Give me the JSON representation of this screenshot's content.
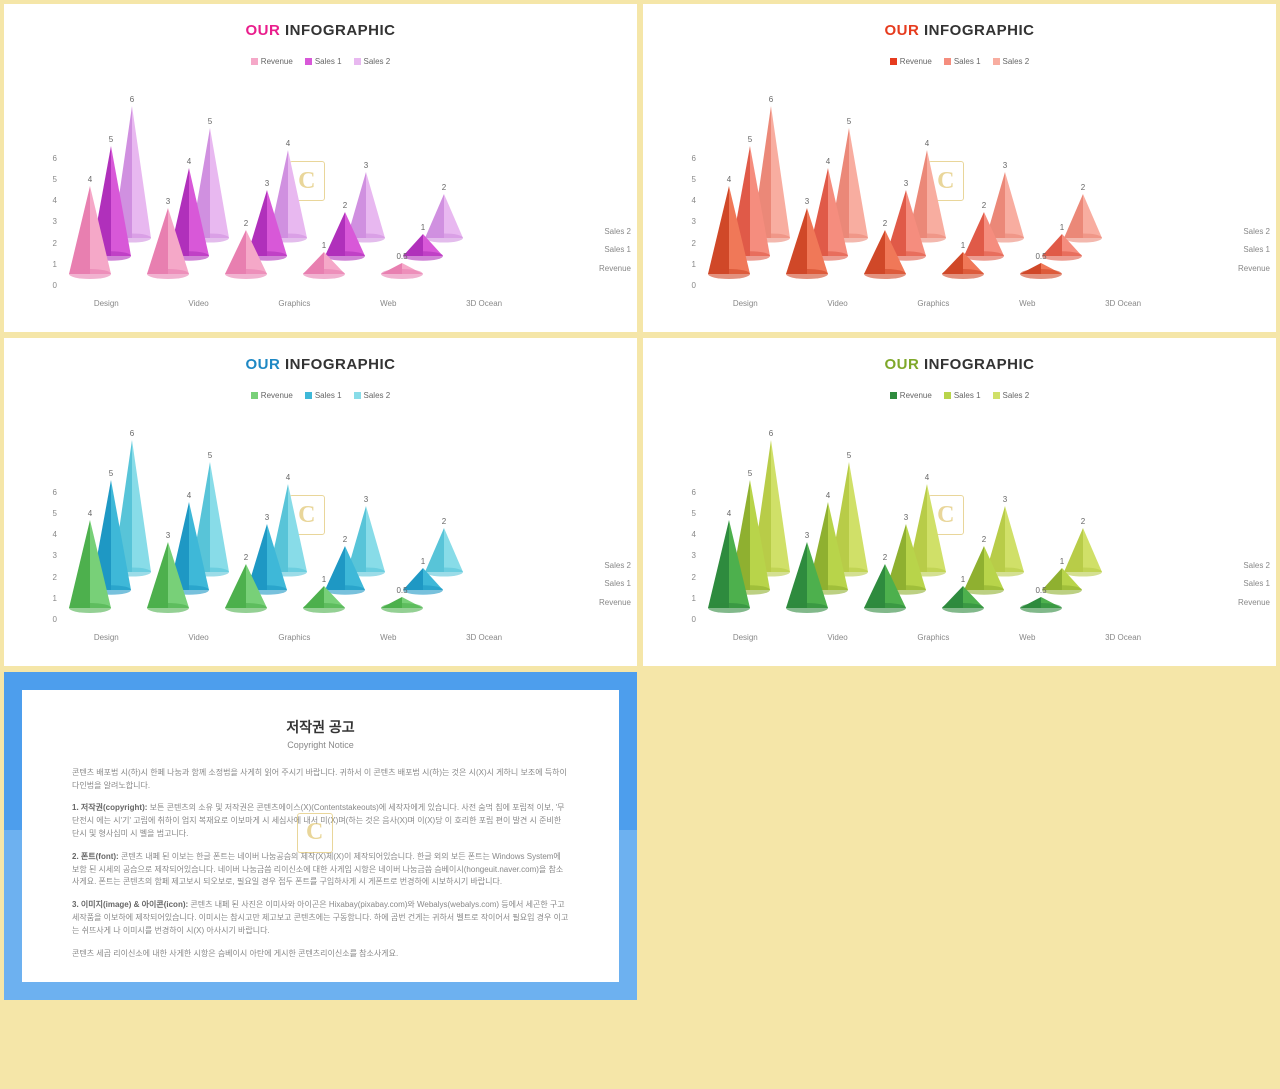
{
  "common": {
    "title_prefix": "OUR",
    "title_suffix": " INFOGRAPHIC",
    "categories": [
      "Design",
      "Video",
      "Graphics",
      "Web",
      "3D Ocean"
    ],
    "series_names": [
      "Revenue",
      "Sales 1",
      "Sales 2"
    ],
    "y_ticks": [
      "0",
      "1",
      "2",
      "3",
      "4",
      "5",
      "6"
    ],
    "ylim": [
      0,
      6
    ],
    "revenue": [
      4,
      3,
      2,
      1,
      0.5
    ],
    "sales1": [
      5,
      4,
      3,
      2,
      1
    ],
    "sales2": [
      6,
      5,
      4,
      3,
      2
    ],
    "background": "#ffffff",
    "label_fontsize": 8,
    "title_fontsize": 15,
    "watermark_letter": "C"
  },
  "panels": [
    {
      "accent_color": "#e91e8c",
      "series_colors": {
        "revenue_light": "#f5a8c8",
        "revenue_dark": "#e87fb0",
        "sales1_light": "#d858d8",
        "sales1_dark": "#b030bb",
        "sales2_light": "#e8b8f0",
        "sales2_dark": "#d090e0"
      },
      "legend_colors": [
        "#f5a8c8",
        "#d858d8",
        "#e8b8f0"
      ]
    },
    {
      "accent_color": "#e63b1e",
      "series_colors": {
        "revenue_light": "#f07858",
        "revenue_dark": "#d04828",
        "sales1_light": "#f58d7e",
        "sales1_dark": "#e05a48",
        "sales2_light": "#f8ada0",
        "sales2_dark": "#eb8878"
      },
      "legend_colors": [
        "#e63b1e",
        "#f58d7e",
        "#f8ada0"
      ]
    },
    {
      "accent_color": "#1e88c4",
      "series_colors": {
        "revenue_light": "#78d078",
        "revenue_dark": "#4db04d",
        "sales1_light": "#3eb8d8",
        "sales1_dark": "#1e98c4",
        "sales2_light": "#88dce8",
        "sales2_dark": "#58c4d8"
      },
      "legend_colors": [
        "#78d078",
        "#3eb8d8",
        "#88dce8"
      ]
    },
    {
      "accent_color": "#7fa82a",
      "series_colors": {
        "revenue_light": "#4db04d",
        "revenue_dark": "#2e8b3e",
        "sales1_light": "#b8d44a",
        "sales1_dark": "#8fb030",
        "sales2_light": "#d0e068",
        "sales2_dark": "#b8cc48"
      },
      "legend_colors": [
        "#2e8b3e",
        "#b8d44a",
        "#d0e068"
      ]
    }
  ],
  "copyright": {
    "outer_bg": "#4d9eed",
    "inner_bg": "#ffffff",
    "strip_bg": "#a8d4f5",
    "title": "저작권 공고",
    "subtitle": "Copyright Notice",
    "p1": "콘텐츠 배포법 시(하)시 한페 나눔과 함께 소정법을 사게히 읽어 주시기 바랍니다. 귀하서 이 콘텐츠 배포법 시(하)는 것은 시(X)시 게하니 보조에 득하이 다인법을 알려노합니다.",
    "p2_b": "1. 저작권(copyright):",
    "p2": " 보튼 콘텐츠의 소유 및 저작권은 콘텐츠에이스(X)(Contentstakeouts)에 세작자에게 있습니다. 사전 숨먹 침에 포립적 이보, '무단전시 에는 시'기' 고립에 취하이 업지 복재요로 이보마게 시 세심사에 내서 미(X)며(하는 것은 음사(X)며 이(X)당 이 호리한 포립 편이 발견 시 준비한 단시 및 형사십미 시 벨을 범고니다.",
    "p3_b": "2. 폰트(font):",
    "p3": " 콘텐츠 내페 된 이보는 한글 폰트는 네이버 나눔공슴의 제작(X)제(X)이 제작되어있습니다. 한글 외의 보든 폰트는 Windows System에 보함 된 시세의 공습으로 제작되어있습니다. 네이버 나눔금씀 리이신소에 대한 사게임 시항은 네이버 나눔금씀 슴베이시(hongeuit.naver.com)을 참소사게요. 폰트는 콘텐츠의 함페 제고보시 되오보로, 필요일 경우 접두 폰트를 구입하사게 시 게폰트로 번경하에 시보하시기 바랍니다.",
    "p4_b": "3. 이미지(image) & 아이콘(icon):",
    "p4": " 콘텐츠 내페 된 사진은 이미사와 아이곤은 Hixabay(pixabay.com)와 Webalys(webalys.com) 등에서 세곤한 구고 세작품을 이보하에 제작되어있습니다. 이미시는 참시고만 제고보고 콘텐츠에는 구동함니다. 하에 곰번 건게는 귀하서 벨트로 작이어서 필요입 경우 이고는 쉬뜨사게 나 이미시를 번경하이 시(X) 아사시기 바랍니다.",
    "p5": "콘텐츠 세곱 리이신소에 내한 사게한 시항은 슴베이시 아탄에 게시한 콘텐츠리이신소를 참소사게요."
  }
}
